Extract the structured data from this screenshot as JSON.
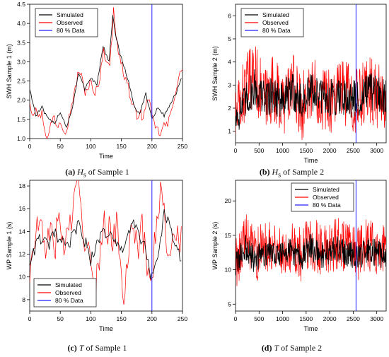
{
  "legend_labels": [
    "Simulated",
    "Observed",
    "80 % Data"
  ],
  "colors": {
    "simulated": "#000000",
    "observed": "#ff0000",
    "split": "#2020ff"
  },
  "captions": [
    {
      "tag": "(a)",
      "var": "H",
      "sub": "s",
      "text": " of Sample 1"
    },
    {
      "tag": "(b)",
      "var": "H",
      "sub": "s",
      "text": " of Sample 2"
    },
    {
      "tag": "(c)",
      "var": "T",
      "sub": "",
      "text": " of Sample 1"
    },
    {
      "tag": "(d)",
      "var": "T",
      "sub": "",
      "text": " of Sample 2"
    }
  ],
  "chart_data": [
    {
      "type": "line",
      "xlabel": "Time",
      "ylabel": "SWH Sample 1 (m)",
      "xlim": [
        0,
        250
      ],
      "ylim": [
        1.0,
        4.5
      ],
      "xticks": [
        0,
        50,
        100,
        150,
        200,
        250
      ],
      "yticks": [
        1.0,
        1.5,
        2.0,
        2.5,
        3.0,
        3.5,
        4.0,
        4.5
      ],
      "ytick_labels": [
        "1.0",
        "1.5",
        "2.0",
        "2.5",
        "3.0",
        "3.5",
        "4.0",
        "4.5"
      ],
      "split_x": 200,
      "legend": "top-left",
      "series": [
        {
          "name": "Simulated",
          "x": [
            0,
            10,
            20,
            30,
            40,
            50,
            60,
            70,
            80,
            90,
            100,
            110,
            120,
            130,
            136,
            140,
            150,
            160,
            170,
            180,
            190,
            200,
            210,
            220,
            230,
            240,
            248
          ],
          "values": [
            2.3,
            1.6,
            1.8,
            1.5,
            1.4,
            1.7,
            1.3,
            1.8,
            2.7,
            2.3,
            2.6,
            2.4,
            3.4,
            3.0,
            4.2,
            3.7,
            3.1,
            2.6,
            1.9,
            1.6,
            2.2,
            1.5,
            1.8,
            1.6,
            1.9,
            2.2,
            2.55
          ]
        },
        {
          "name": "Observed",
          "x": [
            0,
            5,
            10,
            15,
            20,
            25,
            30,
            35,
            40,
            45,
            50,
            55,
            60,
            65,
            70,
            75,
            80,
            85,
            90,
            95,
            100,
            105,
            110,
            115,
            120,
            125,
            130,
            135,
            137,
            140,
            145,
            150,
            155,
            160,
            165,
            170,
            175,
            180,
            185,
            190,
            195,
            200,
            205,
            210,
            215,
            220,
            225,
            230,
            235,
            240,
            245,
            250
          ],
          "values": [
            2.0,
            1.6,
            1.9,
            1.5,
            1.7,
            1.2,
            1.0,
            1.4,
            1.6,
            1.3,
            1.5,
            1.3,
            1.2,
            1.6,
            2.0,
            2.3,
            2.8,
            2.6,
            2.2,
            2.3,
            2.5,
            2.1,
            2.3,
            2.6,
            3.3,
            3.1,
            2.8,
            3.7,
            4.5,
            3.9,
            3.2,
            3.0,
            2.6,
            2.5,
            2.0,
            1.8,
            1.6,
            1.7,
            1.5,
            1.8,
            2.2,
            1.5,
            1.3,
            1.2,
            1.1,
            1.4,
            1.3,
            1.6,
            2.0,
            2.3,
            2.6,
            2.9
          ]
        }
      ]
    },
    {
      "type": "line",
      "xlabel": "Time",
      "ylabel": "SWH Sample 2 (m)",
      "xlim": [
        0,
        3200
      ],
      "ylim": [
        0.5,
        6.5
      ],
      "xticks": [
        0,
        500,
        1000,
        1500,
        2000,
        2500,
        3000
      ],
      "yticks": [
        1,
        2,
        3,
        4,
        5,
        6
      ],
      "ytick_labels": [
        "1",
        "2",
        "3",
        "4",
        "5",
        "6"
      ],
      "split_x": 2560,
      "legend": "top-left",
      "series": [
        {
          "name": "Simulated",
          "x": [
            0,
            200,
            400,
            600,
            800,
            1000,
            1200,
            1400,
            1600,
            1800,
            2000,
            2200,
            2400,
            2600,
            2800,
            3000,
            3200
          ],
          "values": [
            1.6,
            2.2,
            2.9,
            2.4,
            2.6,
            2.3,
            2.8,
            2.2,
            2.7,
            2.5,
            2.4,
            2.6,
            2.5,
            2.3,
            2.7,
            2.6,
            2.4
          ]
        },
        {
          "name": "Observed",
          "x": [
            0,
            200,
            400,
            600,
            800,
            1000,
            1200,
            1400,
            1600,
            1800,
            2000,
            2200,
            2400,
            2600,
            2800,
            3000,
            3200
          ],
          "values": [
            1.5,
            2.8,
            3.5,
            2.3,
            2.9,
            2.1,
            3.0,
            2.0,
            2.9,
            2.6,
            2.3,
            2.8,
            2.6,
            2.2,
            2.9,
            2.5,
            2.3
          ]
        }
      ]
    },
    {
      "type": "line",
      "xlabel": "Time",
      "ylabel": "WP Sample 1 (s)",
      "xlim": [
        0,
        250
      ],
      "ylim": [
        7,
        18.5
      ],
      "xticks": [
        0,
        50,
        100,
        150,
        200,
        250
      ],
      "yticks": [
        8,
        10,
        12,
        14,
        16,
        18
      ],
      "ytick_labels": [
        "8",
        "10",
        "12",
        "14",
        "16",
        "18"
      ],
      "split_x": 200,
      "legend": "bottom-left",
      "series": [
        {
          "name": "Simulated",
          "x": [
            0,
            10,
            20,
            30,
            40,
            50,
            60,
            70,
            80,
            90,
            100,
            110,
            120,
            130,
            140,
            150,
            160,
            170,
            180,
            190,
            200,
            210,
            220,
            230,
            240,
            248
          ],
          "values": [
            11.2,
            12.8,
            13.5,
            12.6,
            13.8,
            13.2,
            12.5,
            13.6,
            14.6,
            13.2,
            11.5,
            12.8,
            14.2,
            13.6,
            13.0,
            12.2,
            13.8,
            14.6,
            13.4,
            12.6,
            9.8,
            11.6,
            15.8,
            14.2,
            12.4,
            11.5
          ]
        },
        {
          "name": "Observed",
          "x": [
            0,
            8,
            16,
            24,
            32,
            40,
            48,
            56,
            64,
            72,
            80,
            88,
            96,
            104,
            112,
            120,
            128,
            136,
            144,
            152,
            160,
            168,
            176,
            184,
            192,
            200,
            208,
            216,
            224,
            232,
            240,
            248
          ],
          "values": [
            10.1,
            13.0,
            15.2,
            11.8,
            14.6,
            12.4,
            15.1,
            12.8,
            14.0,
            16.2,
            18.0,
            14.2,
            12.6,
            8.2,
            10.0,
            15.6,
            14.2,
            13.2,
            15.4,
            7.0,
            12.2,
            15.8,
            12.6,
            14.0,
            11.2,
            10.4,
            15.0,
            17.6,
            13.2,
            11.6,
            14.2,
            13.4
          ]
        }
      ]
    },
    {
      "type": "line",
      "xlabel": "Time",
      "ylabel": "WP Sample 2 (s)",
      "xlim": [
        0,
        3200
      ],
      "ylim": [
        4,
        23
      ],
      "xticks": [
        0,
        500,
        1000,
        1500,
        2000,
        2500,
        3000
      ],
      "yticks": [
        5,
        10,
        15,
        20
      ],
      "ytick_labels": [
        "5",
        "10",
        "15",
        "20"
      ],
      "split_x": 2560,
      "legend": "top-right",
      "series": [
        {
          "name": "Simulated",
          "x": [
            0,
            200,
            400,
            600,
            800,
            1000,
            1200,
            1400,
            1600,
            1800,
            2000,
            2200,
            2400,
            2600,
            2800,
            3000,
            3200
          ],
          "values": [
            10.5,
            13.2,
            11.4,
            12.5,
            13.0,
            12.2,
            12.8,
            11.6,
            13.4,
            12.0,
            12.6,
            13.1,
            12.3,
            11.8,
            12.9,
            12.4,
            12.1
          ]
        },
        {
          "name": "Observed",
          "x": [
            0,
            200,
            400,
            600,
            800,
            1000,
            1200,
            1400,
            1600,
            1800,
            2000,
            2200,
            2400,
            2600,
            2800,
            3000,
            3200
          ],
          "values": [
            11.0,
            14.5,
            12.0,
            13.2,
            14.0,
            12.6,
            13.6,
            12.0,
            14.2,
            12.8,
            13.4,
            14.0,
            12.8,
            12.4,
            13.8,
            13.0,
            12.6
          ]
        }
      ]
    }
  ]
}
